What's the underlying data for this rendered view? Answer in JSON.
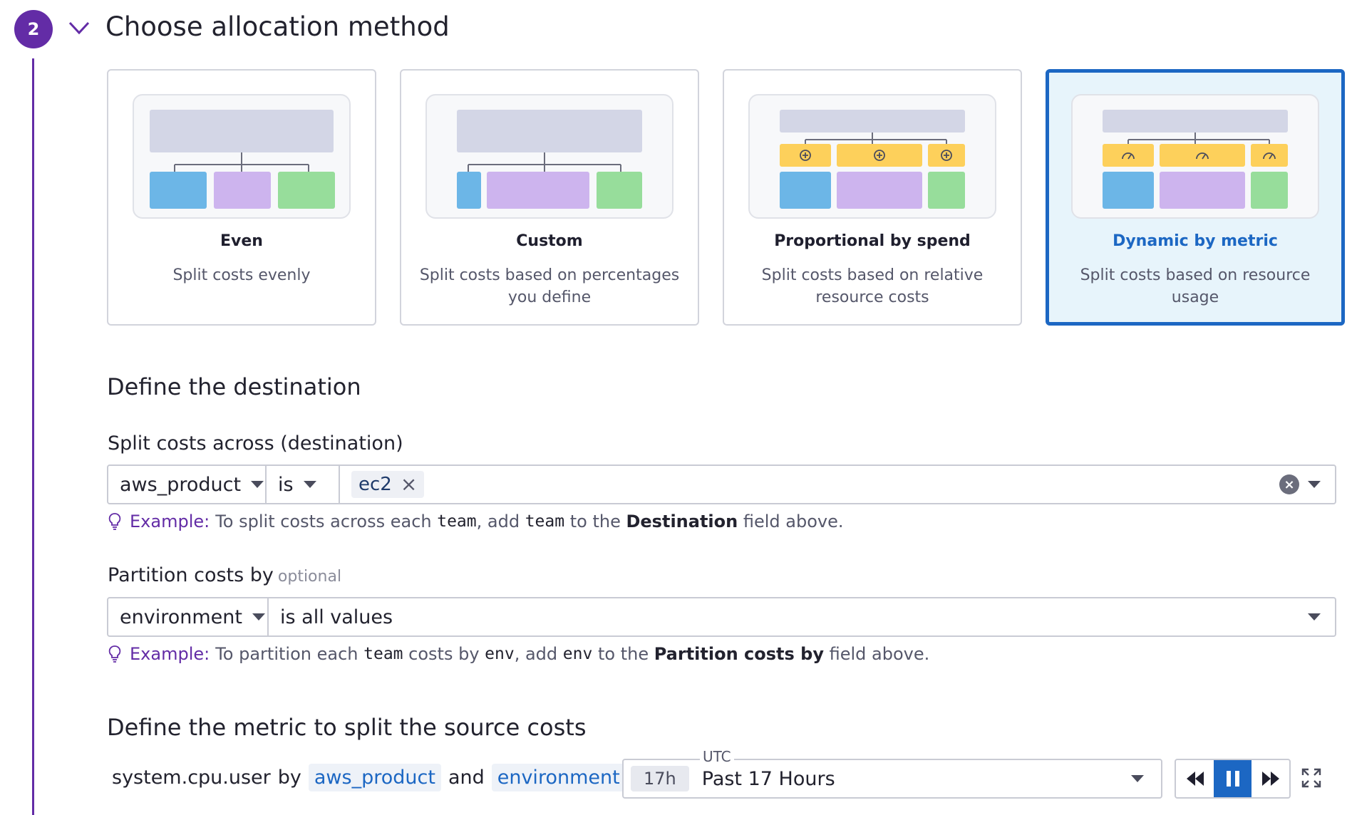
{
  "step": {
    "number": "2",
    "title": "Choose allocation method"
  },
  "methods": [
    {
      "title": "Even",
      "desc": "Split costs evenly",
      "selected": false
    },
    {
      "title": "Custom",
      "desc": "Split costs based on percentages you define",
      "selected": false
    },
    {
      "title": "Proportional by spend",
      "desc": "Split costs based on relative resource costs",
      "selected": false
    },
    {
      "title": "Dynamic by metric",
      "desc": "Split costs based on resource usage",
      "selected": true
    }
  ],
  "destination": {
    "section_title": "Define the destination",
    "label": "Split costs across (destination)",
    "tag_key": "aws_product",
    "operator": "is",
    "value": "ec2",
    "hint": {
      "example": "Example:",
      "t1": "To split costs across each",
      "c1": "team",
      "t2": ", add",
      "c2": "team",
      "t3": "to the",
      "b1": "Destination",
      "t4": "field above."
    }
  },
  "partition": {
    "label": "Partition costs by",
    "optional": "optional",
    "tag_key": "environment",
    "operator": "is all values",
    "hint": {
      "example": "Example:",
      "t1": "To partition each",
      "c1": "team",
      "t2": "costs by",
      "c2": "env",
      "t3": ", add",
      "c3": "env",
      "t4": "to the",
      "b1": "Partition costs by",
      "t5": "field above."
    }
  },
  "metric": {
    "section_title": "Define the metric to split the source costs",
    "name": "system.cpu.user",
    "by": "by",
    "tag1": "aws_product",
    "and": "and",
    "tag2": "environment"
  },
  "time": {
    "tz": "UTC",
    "badge": "17h",
    "label": "Past 17 Hours"
  },
  "colors": {
    "accent": "#632ca6",
    "selected": "#1c67c3",
    "blue": "#6cb6e7",
    "purple": "#cdb4ee",
    "green": "#97dd9b",
    "yellow": "#fdd05b",
    "header": "#d3d6e6"
  }
}
